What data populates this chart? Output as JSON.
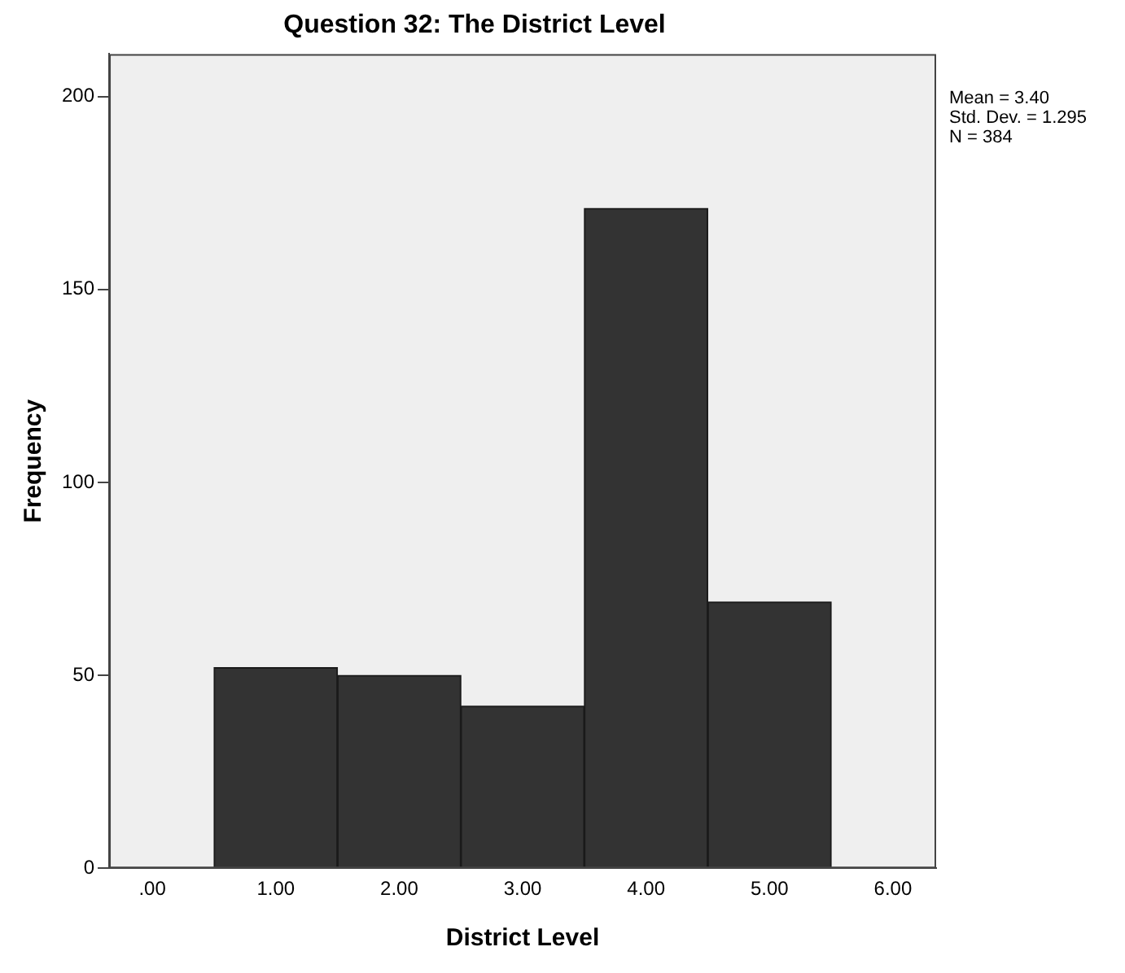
{
  "chart_data": {
    "type": "histogram",
    "title": "Question 32: The District Level",
    "xlabel": "District Level",
    "ylabel": "Frequency",
    "bins": [
      0.5,
      1.5,
      2.5,
      3.5,
      4.5,
      5.5
    ],
    "values": [
      52,
      50,
      42,
      171,
      69
    ],
    "color": "#333333",
    "xlim": [
      -0.35,
      6.35
    ],
    "xticks": [
      {
        "value": 0,
        "label": ".00"
      },
      {
        "value": 1,
        "label": "1.00"
      },
      {
        "value": 2,
        "label": "2.00"
      },
      {
        "value": 3,
        "label": "3.00"
      },
      {
        "value": 4,
        "label": "4.00"
      },
      {
        "value": 5,
        "label": "5.00"
      },
      {
        "value": 6,
        "label": "6.00"
      }
    ],
    "ylim": [
      0,
      211
    ],
    "yticks": [
      0,
      50,
      100,
      150,
      200
    ],
    "grid": false,
    "legend": false,
    "annotations": [
      "Mean = 3.40",
      "Std. Dev. = 1.295",
      "N = 384"
    ]
  }
}
